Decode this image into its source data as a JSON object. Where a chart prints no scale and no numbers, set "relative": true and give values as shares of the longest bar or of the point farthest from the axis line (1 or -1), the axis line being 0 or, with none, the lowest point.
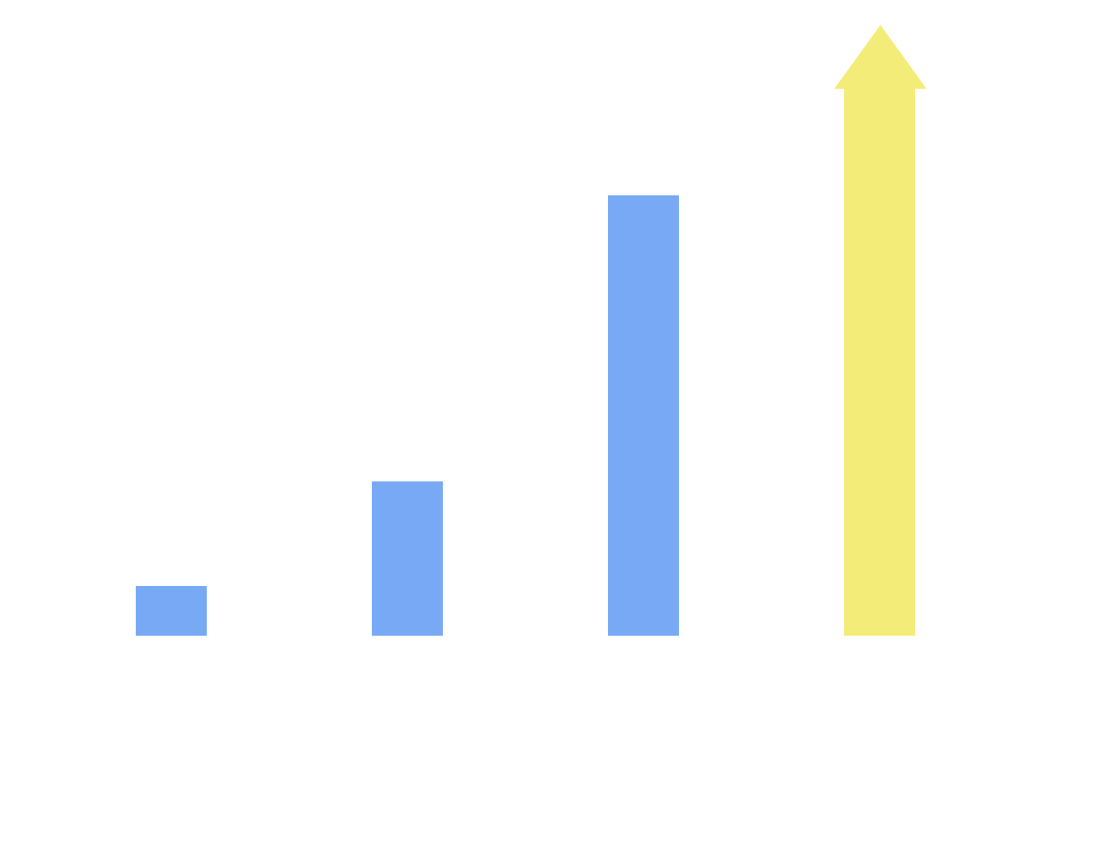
{
  "chart_data": {
    "type": "bar",
    "relative": true,
    "categories": [
      null,
      null,
      null,
      null
    ],
    "values": [
      0.091,
      0.282,
      0.805,
      1
    ],
    "colors": [
      "#78a9f4",
      "#78a9f4",
      "#78a9f4",
      "#f4ec78"
    ]
  }
}
